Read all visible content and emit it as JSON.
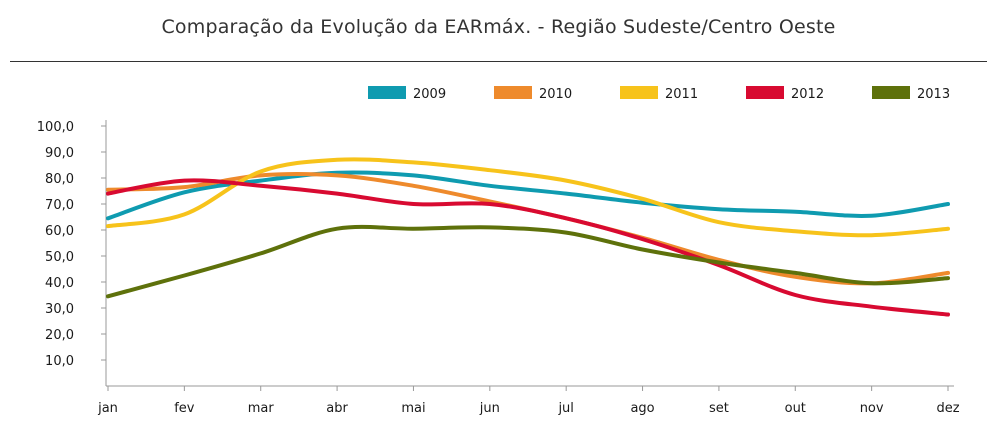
{
  "chart_data": {
    "type": "line",
    "title": "Comparação da Evolução da EARmáx. - Região Sudeste/Centro Oeste",
    "xlabel": "",
    "ylabel": "",
    "categories": [
      "jan",
      "fev",
      "mar",
      "abr",
      "mai",
      "jun",
      "jul",
      "ago",
      "set",
      "out",
      "nov",
      "dez"
    ],
    "ylim": [
      0,
      100
    ],
    "yticks": [
      "10,0",
      "20,0",
      "30,0",
      "40,0",
      "50,0",
      "60,0",
      "70,0",
      "80,0",
      "90,0",
      "100,0"
    ],
    "ytick_values": [
      10,
      20,
      30,
      40,
      50,
      60,
      70,
      80,
      90,
      100
    ],
    "grid": false,
    "legend_position": "top-right",
    "series": [
      {
        "name": "2009",
        "color": "#0f9bb0",
        "values": [
          64.5,
          74.5,
          79,
          82,
          81,
          77,
          74,
          70.5,
          68,
          67,
          65.5,
          70
        ]
      },
      {
        "name": "2010",
        "color": "#ee8a2c",
        "values": [
          75.5,
          76.5,
          81,
          81,
          77,
          71,
          64.5,
          57,
          48.5,
          42,
          39.5,
          43.5
        ]
      },
      {
        "name": "2011",
        "color": "#f7c31b",
        "values": [
          61.5,
          66,
          82.5,
          87,
          86,
          83,
          79,
          72,
          63,
          59.5,
          58,
          60.5
        ]
      },
      {
        "name": "2012",
        "color": "#d80a31",
        "values": [
          74,
          79,
          77,
          74,
          70,
          70,
          64.5,
          56.5,
          46.5,
          35,
          30.5,
          27.5
        ]
      },
      {
        "name": "2013",
        "color": "#5e710b",
        "values": [
          34.5,
          42.5,
          51,
          60.5,
          60.5,
          61,
          59,
          52.5,
          47.5,
          43.5,
          39.5,
          41.5
        ]
      }
    ]
  }
}
